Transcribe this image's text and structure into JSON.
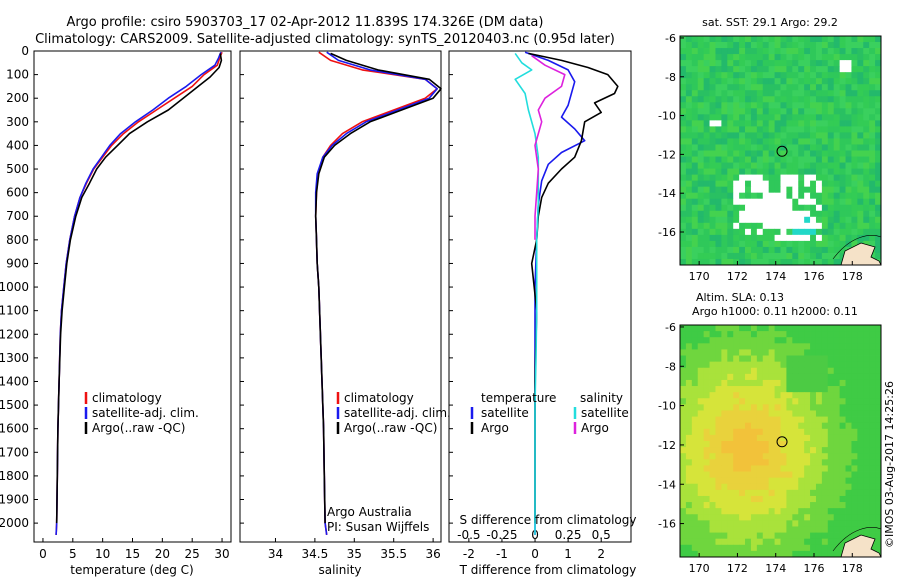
{
  "header": {
    "line1": "Argo profile: csiro 5903703_17 02-Apr-2012 11.839S 174.326E (DM data)",
    "line2": "Climatology: CARS2009. Satellite-adjusted climatology: synTS_20120403.nc (0.95d later)"
  },
  "colors": {
    "climatology": "#ee1111",
    "satellite": "#1a1aee",
    "argo": "#000000",
    "sal_satellite": "#22dddd",
    "sal_argo": "#dd22dd"
  },
  "chart_data": [
    {
      "type": "line",
      "xlabel": "temperature (deg C)",
      "xlim": [
        -1.5,
        31.5
      ],
      "xticks": [
        0,
        5,
        10,
        15,
        20,
        25,
        30
      ],
      "ylim": [
        2080,
        0
      ],
      "yticks": [
        0,
        100,
        200,
        300,
        400,
        500,
        600,
        700,
        800,
        900,
        1000,
        1100,
        1200,
        1300,
        1400,
        1500,
        1600,
        1700,
        1800,
        1900,
        2000
      ],
      "legend": [
        "climatology",
        "satellite-adj. clim.",
        "Argo(..raw -QC)"
      ],
      "series": [
        {
          "name": "climatology",
          "color": "#ee1111",
          "x": [
            30,
            29.6,
            29.2,
            27,
            25,
            22,
            19,
            16,
            13.5,
            11.5,
            10,
            8.5,
            7.3,
            6.2,
            5.3,
            4.5,
            3.9,
            3.5,
            3.1,
            2.9,
            2.7,
            2.5,
            2.4,
            2.3,
            2.2
          ],
          "y": [
            5,
            30,
            60,
            100,
            150,
            200,
            250,
            300,
            350,
            400,
            450,
            500,
            560,
            620,
            700,
            800,
            900,
            1000,
            1100,
            1200,
            1400,
            1600,
            1800,
            2000,
            2050
          ]
        },
        {
          "name": "satellite-adj. clim.",
          "color": "#1a1aee",
          "x": [
            29.8,
            29.4,
            28.8,
            26.5,
            24,
            21,
            18.4,
            15.5,
            13,
            11.2,
            9.8,
            8.4,
            7.2,
            6.2,
            5.3,
            4.5,
            3.9,
            3.5,
            3.1,
            2.9,
            2.7,
            2.5,
            2.4,
            2.3,
            2.2
          ],
          "y": [
            5,
            30,
            60,
            100,
            150,
            200,
            250,
            300,
            350,
            400,
            450,
            500,
            560,
            620,
            700,
            800,
            900,
            1000,
            1100,
            1200,
            1400,
            1600,
            1800,
            2000,
            2050
          ]
        },
        {
          "name": "Argo(..raw -QC)",
          "color": "#000000",
          "x": [
            29.7,
            29.9,
            29.5,
            28,
            26,
            23.5,
            21,
            17.5,
            14.5,
            12.5,
            10.5,
            9,
            7.8,
            6.5,
            5.5,
            4.6,
            4,
            3.6,
            3.2,
            2.95,
            2.7,
            2.5,
            2.4,
            2.3
          ],
          "y": [
            10,
            40,
            70,
            110,
            150,
            200,
            250,
            300,
            350,
            400,
            450,
            500,
            560,
            620,
            700,
            800,
            900,
            1000,
            1100,
            1200,
            1400,
            1600,
            1800,
            2000
          ]
        }
      ]
    },
    {
      "type": "line",
      "xlabel": "salinity",
      "xlim": [
        33.55,
        36.1
      ],
      "xticks": [
        34,
        34.5,
        35,
        35.5,
        36
      ],
      "ylim": [
        2080,
        0
      ],
      "legend": [
        "climatology",
        "satellite-adj. clim.",
        "Argo(..raw -QC)"
      ],
      "annotation": [
        "Argo Australia",
        "PI: Susan Wijffels"
      ],
      "series": [
        {
          "name": "climatology",
          "color": "#ee1111",
          "x": [
            34.55,
            34.7,
            35.1,
            35.9,
            36.05,
            35.9,
            35.5,
            35.1,
            34.85,
            34.7,
            34.6,
            34.54,
            34.52,
            34.51,
            34.52,
            34.53,
            34.55,
            34.57,
            34.59,
            34.61,
            34.62,
            34.63,
            34.65
          ],
          "y": [
            5,
            40,
            80,
            120,
            160,
            200,
            250,
            300,
            350,
            400,
            450,
            520,
            600,
            700,
            800,
            900,
            1000,
            1200,
            1400,
            1600,
            1800,
            2000,
            2050
          ]
        },
        {
          "name": "satellite-adj. clim.",
          "color": "#1a1aee",
          "x": [
            34.65,
            34.8,
            35.2,
            35.9,
            36.05,
            35.95,
            35.55,
            35.15,
            34.9,
            34.72,
            34.6,
            34.53,
            34.51,
            34.51,
            34.52,
            34.53,
            34.55,
            34.57,
            34.59,
            34.61,
            34.62,
            34.63,
            34.65
          ],
          "y": [
            5,
            40,
            80,
            120,
            160,
            200,
            250,
            300,
            350,
            400,
            450,
            520,
            600,
            700,
            800,
            900,
            1000,
            1200,
            1400,
            1600,
            1800,
            2000,
            2050
          ]
        },
        {
          "name": "Argo(..raw -QC)",
          "color": "#000000",
          "x": [
            34.7,
            34.9,
            35.3,
            35.95,
            36.1,
            36.0,
            35.6,
            35.2,
            34.95,
            34.75,
            34.62,
            34.55,
            34.52,
            34.51,
            34.52,
            34.53,
            34.55,
            34.57,
            34.59,
            34.61,
            34.62,
            34.63
          ],
          "y": [
            10,
            40,
            80,
            120,
            160,
            200,
            250,
            300,
            350,
            400,
            450,
            520,
            600,
            700,
            800,
            900,
            1000,
            1200,
            1400,
            1600,
            1800,
            2000
          ]
        }
      ]
    },
    {
      "type": "line",
      "xlabel": "T difference from climatology",
      "xlabel_top": "S difference from climatology",
      "xlim": [
        -2.6,
        2.9
      ],
      "xticks": [
        -2,
        -1,
        0,
        1,
        2
      ],
      "xticks_top": [
        "-0.5",
        "-0.25",
        "0",
        "0.25",
        "0.5"
      ],
      "xticks_top_pos": [
        -2,
        -1,
        0,
        1,
        2
      ],
      "ylim": [
        2080,
        0
      ],
      "legend_temperature": [
        "temperature",
        "satellite",
        "Argo"
      ],
      "legend_salinity": [
        "salinity",
        "satellite",
        "Argo"
      ],
      "series": [
        {
          "name": "temperature satellite",
          "color": "#1a1aee",
          "x": [
            -0.3,
            0.4,
            1.0,
            1.2,
            1.1,
            1.0,
            0.8,
            1.2,
            1.5,
            0.8,
            0.4,
            0.2,
            0.1,
            0.05,
            0.0,
            0.0,
            0.0,
            0.0,
            0.0
          ],
          "y": [
            5,
            40,
            80,
            130,
            180,
            230,
            280,
            330,
            380,
            430,
            480,
            550,
            650,
            800,
            1000,
            1300,
            1600,
            1900,
            2050
          ]
        },
        {
          "name": "temperature Argo",
          "color": "#000000",
          "x": [
            -0.2,
            0.8,
            1.6,
            2.2,
            2.5,
            2.4,
            1.8,
            2.0,
            1.5,
            1.4,
            1.2,
            0.8,
            0.4,
            0.2,
            0.1,
            0.05,
            -0.1,
            0.05,
            0.0,
            0.0,
            0.0
          ],
          "y": [
            10,
            40,
            70,
            100,
            150,
            180,
            220,
            260,
            300,
            380,
            450,
            500,
            560,
            620,
            700,
            800,
            900,
            1100,
            1400,
            1700,
            2000
          ]
        },
        {
          "name": "salinity satellite",
          "color": "#22dddd",
          "x": [
            -0.6,
            -0.4,
            -0.1,
            -0.6,
            -0.3,
            -0.2,
            0.0,
            0.1,
            0.1,
            0.1,
            0.05,
            0.05,
            0.05,
            0.03,
            0.0,
            0.0,
            0.0,
            0.0
          ],
          "y": [
            10,
            50,
            80,
            120,
            180,
            250,
            350,
            450,
            550,
            650,
            800,
            950,
            1100,
            1300,
            1500,
            1700,
            1900,
            2050
          ]
        },
        {
          "name": "salinity Argo",
          "color": "#dd22dd",
          "x": [
            -0.1,
            0.3,
            0.9,
            0.8,
            0.3,
            0.1,
            0.2,
            0.0,
            0.1,
            0.05,
            0.0,
            0.0
          ],
          "y": [
            20,
            60,
            100,
            150,
            200,
            250,
            300,
            400,
            500,
            600,
            700,
            800
          ]
        }
      ]
    },
    {
      "type": "heatmap",
      "title": "sat. SST: 29.1  Argo: 29.2",
      "xticks": [
        170,
        172,
        174,
        176,
        178
      ],
      "yticks": [
        -6,
        -8,
        -10,
        -12,
        -14,
        -16
      ],
      "xlim": [
        169,
        179.5
      ],
      "ylim": [
        -17.7,
        -5.9
      ],
      "marker": {
        "lon": 174.33,
        "lat": -11.84
      }
    },
    {
      "type": "heatmap",
      "title_lines": [
        "Altim. SLA: 0.13",
        "Argo h1000: 0.11 h2000: 0.11"
      ],
      "xticks": [
        170,
        172,
        174,
        176,
        178
      ],
      "yticks": [
        -6,
        -8,
        -10,
        -12,
        -14,
        -16
      ],
      "xlim": [
        169,
        179.5
      ],
      "ylim": [
        -17.7,
        -5.9
      ],
      "marker": {
        "lon": 174.33,
        "lat": -11.84
      }
    }
  ],
  "footer_credit": "©IMOS 03-Aug-2017 14:25:26"
}
